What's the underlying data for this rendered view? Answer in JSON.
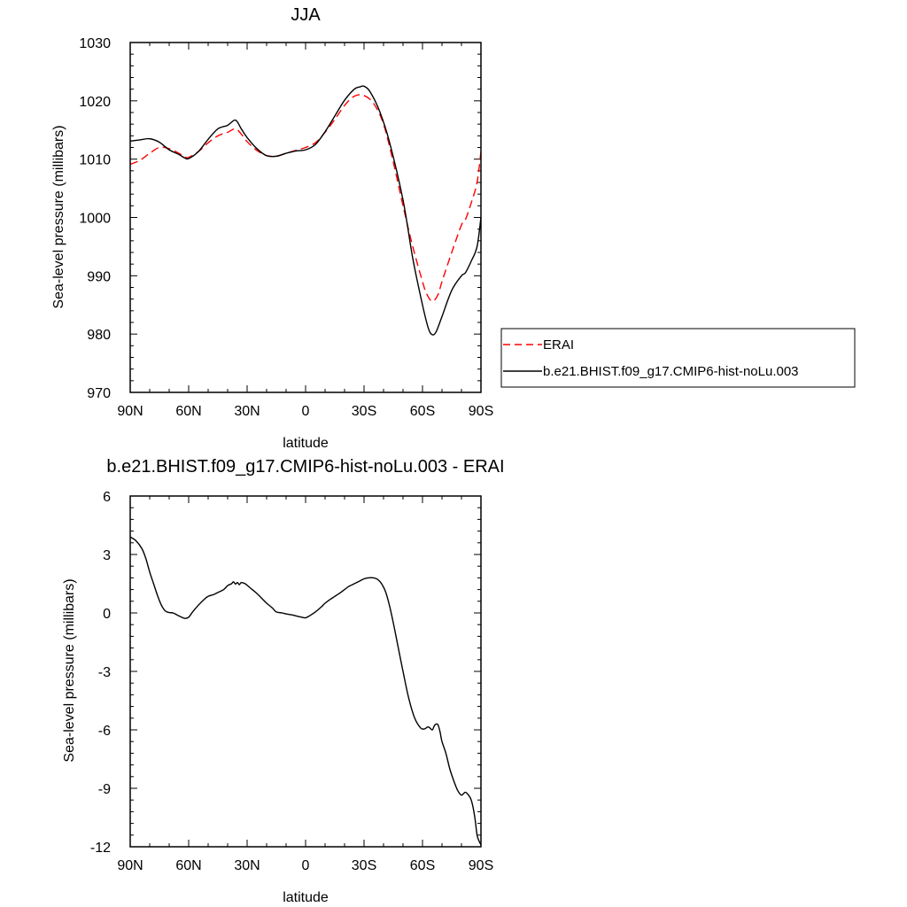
{
  "chart_data": [
    {
      "type": "line",
      "title": "JJA",
      "xlabel": "latitude",
      "ylabel": "Sea-level pressure (millibars)",
      "xlim": [
        90,
        -90
      ],
      "ylim": [
        970,
        1030
      ],
      "xticks": [
        90,
        60,
        30,
        0,
        -30,
        -60,
        -90
      ],
      "xtick_labels": [
        "90N",
        "60N",
        "30N",
        "0",
        "30S",
        "60S",
        "90S"
      ],
      "yticks": [
        970,
        980,
        990,
        1000,
        1010,
        1020,
        1030
      ],
      "ytick_labels": [
        "970",
        "980",
        "990",
        "1000",
        "1010",
        "1020",
        "1030"
      ],
      "legend_position": "right",
      "series": [
        {
          "name": "ERAI",
          "color": "#ff0000",
          "dash": "dashed",
          "x": [
            90,
            85,
            80,
            75,
            70,
            65,
            62,
            60,
            55,
            50,
            45,
            40,
            36,
            33,
            30,
            25,
            20,
            15,
            10,
            5,
            0,
            -5,
            -10,
            -15,
            -20,
            -25,
            -30,
            -35,
            -40,
            -45,
            -50,
            -55,
            -60,
            -62,
            -65,
            -68,
            -70,
            -75,
            -80,
            -82,
            -85,
            -88,
            -90
          ],
          "values": [
            1009.1,
            1009.8,
            1011.0,
            1012.0,
            1011.8,
            1011.0,
            1010.4,
            1010.3,
            1011.3,
            1012.8,
            1014.0,
            1014.6,
            1015.2,
            1014.3,
            1013.0,
            1011.5,
            1010.6,
            1010.5,
            1011.0,
            1011.5,
            1012.0,
            1012.8,
            1014.6,
            1016.8,
            1019.2,
            1020.8,
            1020.9,
            1019.5,
            1016.0,
            1009.5,
            1002.0,
            995.0,
            989.0,
            987.0,
            985.6,
            986.8,
            989.0,
            994.0,
            998.7,
            999.6,
            1002.5,
            1006.0,
            1011.3
          ]
        },
        {
          "name": "b.e21.BHIST.f09_g17.CMIP6-hist-noLu.003",
          "color": "#000000",
          "dash": "solid",
          "x": [
            90,
            85,
            80,
            75,
            70,
            65,
            62,
            60,
            55,
            50,
            45,
            40,
            36,
            33,
            30,
            25,
            20,
            15,
            10,
            5,
            0,
            -5,
            -10,
            -15,
            -20,
            -25,
            -28,
            -30,
            -33,
            -38,
            -43,
            -50,
            -55,
            -60,
            -63,
            -65,
            -67,
            -70,
            -75,
            -80,
            -82,
            -85,
            -88,
            -90
          ],
          "values": [
            1013.1,
            1013.3,
            1013.5,
            1012.9,
            1011.6,
            1010.8,
            1010.2,
            1010.1,
            1011.3,
            1013.4,
            1015.2,
            1015.8,
            1016.7,
            1015.2,
            1013.7,
            1011.8,
            1010.6,
            1010.5,
            1011.0,
            1011.4,
            1011.6,
            1012.5,
            1014.7,
            1017.4,
            1020.1,
            1022.0,
            1022.4,
            1022.5,
            1021.6,
            1018.2,
            1013.0,
            1003.0,
            993.0,
            985.0,
            981.0,
            979.9,
            980.4,
            983.0,
            987.5,
            990.0,
            990.5,
            992.5,
            995.0,
            1000.0
          ]
        }
      ]
    },
    {
      "type": "line",
      "title": "b.e21.BHIST.f09_g17.CMIP6-hist-noLu.003 - ERAI",
      "xlabel": "latitude",
      "ylabel": "Sea-level pressure (millibars)",
      "xlim": [
        90,
        -90
      ],
      "ylim": [
        -12,
        6
      ],
      "xticks": [
        90,
        60,
        30,
        0,
        -30,
        -60,
        -90
      ],
      "xtick_labels": [
        "90N",
        "60N",
        "30N",
        "0",
        "30S",
        "60S",
        "90S"
      ],
      "yticks": [
        -12,
        -9,
        -6,
        -3,
        0,
        3,
        6
      ],
      "ytick_labels": [
        "-12",
        "-9",
        "-6",
        "-3",
        "0",
        "3",
        "6"
      ],
      "series": [
        {
          "color": "#000000",
          "dash": "solid",
          "x": [
            90,
            87,
            84,
            82,
            80,
            78,
            76,
            74,
            72,
            70,
            68,
            66,
            64,
            62,
            60,
            58,
            55,
            52,
            50,
            47,
            45,
            42,
            40,
            38,
            37,
            36,
            35,
            34,
            33,
            31,
            30,
            28,
            25,
            22,
            20,
            17,
            15,
            12,
            10,
            7,
            5,
            2,
            0,
            -2,
            -5,
            -8,
            -10,
            -12,
            -15,
            -18,
            -20,
            -22,
            -25,
            -28,
            -30,
            -32,
            -35,
            -37,
            -39,
            -41,
            -43,
            -45,
            -47,
            -50,
            -53,
            -56,
            -59,
            -61,
            -63,
            -65,
            -66,
            -67,
            -68,
            -69,
            -70,
            -72,
            -74,
            -76,
            -78,
            -80,
            -82,
            -84,
            -85,
            -86,
            -87,
            -88,
            -89,
            -90
          ],
          "values": [
            3.9,
            3.7,
            3.3,
            2.8,
            2.1,
            1.5,
            0.9,
            0.4,
            0.1,
            0.02,
            0.0,
            -0.1,
            -0.2,
            -0.28,
            -0.22,
            0.05,
            0.4,
            0.7,
            0.85,
            0.95,
            1.05,
            1.2,
            1.4,
            1.5,
            1.6,
            1.48,
            1.56,
            1.45,
            1.56,
            1.5,
            1.42,
            1.25,
            1.0,
            0.7,
            0.5,
            0.25,
            0.05,
            0.0,
            -0.05,
            -0.1,
            -0.15,
            -0.22,
            -0.25,
            -0.15,
            0.05,
            0.3,
            0.5,
            0.65,
            0.85,
            1.05,
            1.2,
            1.35,
            1.5,
            1.65,
            1.75,
            1.8,
            1.8,
            1.72,
            1.5,
            1.1,
            0.4,
            -0.5,
            -1.5,
            -3.0,
            -4.4,
            -5.4,
            -5.9,
            -5.95,
            -5.85,
            -6.0,
            -5.8,
            -5.7,
            -5.75,
            -6.1,
            -6.6,
            -7.2,
            -8.0,
            -8.6,
            -9.1,
            -9.35,
            -9.2,
            -9.4,
            -9.6,
            -10.0,
            -10.6,
            -11.4,
            -11.7,
            -11.9
          ]
        }
      ]
    }
  ]
}
